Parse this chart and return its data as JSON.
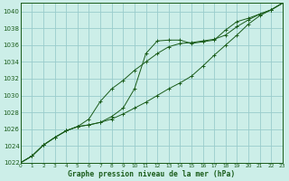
{
  "title": "Graphe pression niveau de la mer (hPa)",
  "bg_color": "#cceee8",
  "grid_color": "#99cccc",
  "line_color": "#1a5c1a",
  "xlim": [
    0,
    23
  ],
  "ylim": [
    1022,
    1041
  ],
  "xticks": [
    0,
    1,
    2,
    3,
    4,
    5,
    6,
    7,
    8,
    9,
    10,
    11,
    12,
    13,
    14,
    15,
    16,
    17,
    18,
    19,
    20,
    21,
    22,
    23
  ],
  "yticks": [
    1022,
    1024,
    1026,
    1028,
    1030,
    1032,
    1034,
    1036,
    1038,
    1040
  ],
  "series1_x": [
    0,
    1,
    2,
    3,
    4,
    5,
    6,
    7,
    8,
    9,
    10,
    11,
    12,
    13,
    14,
    15,
    16,
    17,
    18,
    19,
    20,
    21,
    22,
    23
  ],
  "series1_y": [
    1022,
    1022.8,
    1024.1,
    1025.0,
    1025.8,
    1026.3,
    1027.2,
    1029.3,
    1030.8,
    1031.8,
    1033.0,
    1034.0,
    1035.0,
    1035.8,
    1036.2,
    1036.3,
    1036.5,
    1036.7,
    1037.2,
    1038.2,
    1039.0,
    1039.7,
    1040.2,
    1041.0
  ],
  "series2_x": [
    0,
    1,
    2,
    3,
    4,
    5,
    6,
    7,
    8,
    9,
    10,
    11,
    12,
    13,
    14,
    15,
    16,
    17,
    18,
    19,
    20,
    21,
    22,
    23
  ],
  "series2_y": [
    1022,
    1022.8,
    1024.1,
    1025.0,
    1025.8,
    1026.3,
    1026.5,
    1026.8,
    1027.5,
    1028.5,
    1030.8,
    1035.0,
    1036.5,
    1036.6,
    1036.6,
    1036.2,
    1036.4,
    1036.6,
    1037.8,
    1038.8,
    1039.2,
    1039.7,
    1040.2,
    1041.0
  ],
  "series3_x": [
    0,
    1,
    2,
    3,
    4,
    5,
    6,
    7,
    8,
    9,
    10,
    11,
    12,
    13,
    14,
    15,
    16,
    17,
    18,
    19,
    20,
    21,
    22,
    23
  ],
  "series3_y": [
    1022,
    1022.8,
    1024.1,
    1025.0,
    1025.8,
    1026.3,
    1026.5,
    1026.8,
    1027.2,
    1027.8,
    1028.5,
    1029.2,
    1030.0,
    1030.8,
    1031.5,
    1032.3,
    1033.5,
    1034.8,
    1036.0,
    1037.2,
    1038.5,
    1039.5,
    1040.2,
    1041.0
  ]
}
